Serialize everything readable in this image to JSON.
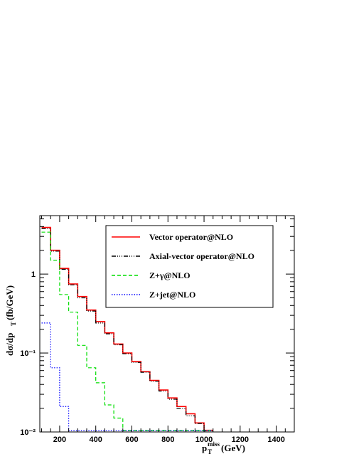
{
  "chart_data": {
    "type": "line",
    "step": true,
    "xlabel": "p_T^miss(GeV)",
    "ylabel": "dσ/dp_T (fb/GeV)",
    "xlim": [
      90,
      1500
    ],
    "ylim": [
      0.01,
      5.5
    ],
    "yscale": "log",
    "xticks": [
      200,
      400,
      600,
      800,
      1000,
      1200,
      1400
    ],
    "yticks": [
      {
        "value": 0.01,
        "label": "10⁻²"
      },
      {
        "value": 0.1,
        "label": "10⁻¹"
      },
      {
        "value": 1,
        "label": "1"
      }
    ],
    "bin_edges": [
      100,
      150,
      200,
      250,
      300,
      350,
      400,
      450,
      500,
      550,
      600,
      650,
      700,
      750,
      800,
      850,
      900,
      950,
      1000,
      1050
    ],
    "legend_position": "top-right",
    "series": [
      {
        "name": "Vector operator@NLO",
        "color": "#ff0000",
        "dash": "",
        "values": [
          3.9,
          2.0,
          1.18,
          0.75,
          0.52,
          0.35,
          0.25,
          0.18,
          0.13,
          0.1,
          0.078,
          0.058,
          0.045,
          0.034,
          0.027,
          0.021,
          0.017,
          0.013,
          0.0105
        ]
      },
      {
        "name": "Axial-vector operator@NLO",
        "color": "#000000",
        "dash": "6,2,1,2,1,2,1,2",
        "values": [
          3.75,
          1.95,
          1.15,
          0.73,
          0.5,
          0.34,
          0.24,
          0.175,
          0.127,
          0.098,
          0.076,
          0.057,
          0.044,
          0.033,
          0.026,
          0.02,
          0.016,
          0.0128,
          0.0103
        ]
      },
      {
        "name": "Z+γ@NLO",
        "color": "#00dd00",
        "dash": "5,3",
        "values": [
          3.4,
          1.5,
          0.55,
          0.33,
          0.125,
          0.065,
          0.042,
          0.022,
          0.015,
          0.0105,
          0.0105,
          0.0105,
          0.0105,
          0.0105,
          0.0105,
          0.0105,
          0.0105,
          0.0105,
          0.0105
        ]
      },
      {
        "name": "Z+jet@NLO",
        "color": "#0000ff",
        "dash": "1.5,2",
        "values": [
          0.24,
          0.065,
          0.021,
          0.0104,
          0.0104,
          0.0104,
          0.0104,
          0.0104,
          0.0104,
          0.0104,
          0.0104,
          0.0104,
          0.0104,
          0.0104,
          0.0104,
          0.0104,
          0.0104,
          0.0104,
          0.0104
        ]
      }
    ]
  }
}
